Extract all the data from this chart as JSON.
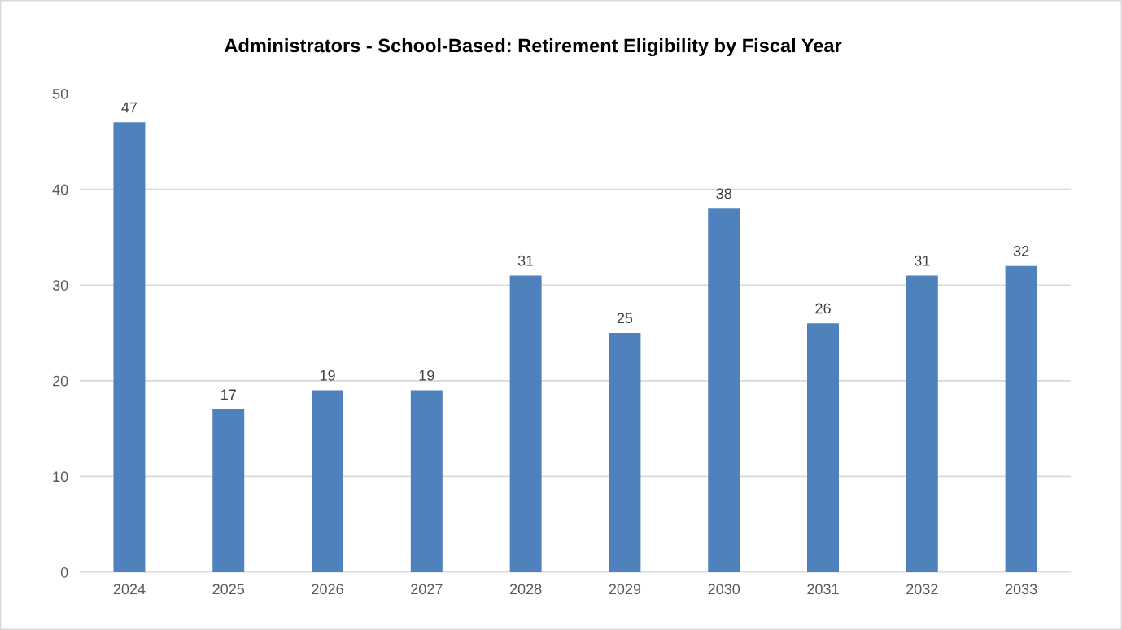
{
  "chart_data": {
    "type": "bar",
    "title": "Administrators - School-Based: Retirement Eligibility by Fiscal Year",
    "categories": [
      "2024",
      "2025",
      "2026",
      "2027",
      "2028",
      "2029",
      "2030",
      "2031",
      "2032",
      "2033"
    ],
    "values": [
      47,
      17,
      19,
      19,
      31,
      25,
      38,
      26,
      31,
      32
    ],
    "color": "#4f81bd",
    "ylim": [
      0,
      50
    ],
    "yticks": [
      0,
      10,
      20,
      30,
      40,
      50
    ],
    "grid": "y",
    "data_labels": true,
    "legend": false
  }
}
